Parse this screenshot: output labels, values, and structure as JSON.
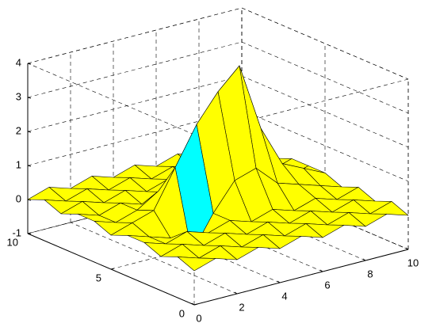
{
  "chart_data": {
    "type": "surface",
    "x": [
      0,
      1,
      2,
      3,
      4,
      5,
      6,
      7,
      8,
      9,
      10
    ],
    "y": [
      0,
      1,
      2,
      3,
      4,
      5,
      6,
      7,
      8,
      9,
      10
    ],
    "z": [
      [
        0,
        0.2,
        0,
        0.2,
        0,
        0.2,
        0,
        0.2,
        0,
        0.2,
        0
      ],
      [
        0.2,
        0,
        0.2,
        0,
        0.2,
        0,
        0.2,
        0,
        0.2,
        0,
        0.2
      ],
      [
        0,
        0.2,
        0,
        0.2,
        0,
        0.2,
        0,
        0.2,
        0,
        0.2,
        0
      ],
      [
        0.2,
        0,
        0.2,
        0,
        0.2,
        0,
        0.2,
        0,
        0.2,
        0,
        0.2
      ],
      [
        0.2,
        0,
        -0.2,
        -0.8,
        0.2,
        1,
        1.2,
        0.6,
        0.4,
        0.2,
        0
      ],
      [
        0,
        0.2,
        0.4,
        1.5,
        2.6,
        3.4,
        4,
        2,
        0.8,
        0.5,
        0.2
      ],
      [
        0.2,
        0,
        0.2,
        0.6,
        1,
        1.4,
        1.6,
        0.8,
        0.4,
        0,
        0.2
      ],
      [
        0.2,
        0,
        0.2,
        0,
        0.2,
        0,
        0.2,
        0,
        0.2,
        0,
        0.2
      ],
      [
        0,
        0.2,
        0,
        0.2,
        0,
        0.2,
        0,
        0.2,
        0,
        0.2,
        0
      ],
      [
        0.2,
        0,
        0.2,
        0,
        0.2,
        0,
        0.2,
        0,
        0.2,
        0,
        0.2
      ],
      [
        0,
        0.2,
        0,
        0.2,
        0,
        0.2,
        0,
        0.2,
        0,
        0.2,
        0
      ]
    ],
    "xlim": [
      0,
      10
    ],
    "ylim": [
      0,
      10
    ],
    "zlim": [
      -1,
      4
    ],
    "xticks": [
      0,
      2,
      4,
      6,
      8,
      10
    ],
    "yticks": [
      0,
      5,
      10
    ],
    "zticks": [
      -1,
      0,
      1,
      2,
      3,
      4
    ],
    "grid": true,
    "face_color": "#ffff00",
    "steep_face_color": "#00ffff",
    "edge_color": "#000000"
  }
}
